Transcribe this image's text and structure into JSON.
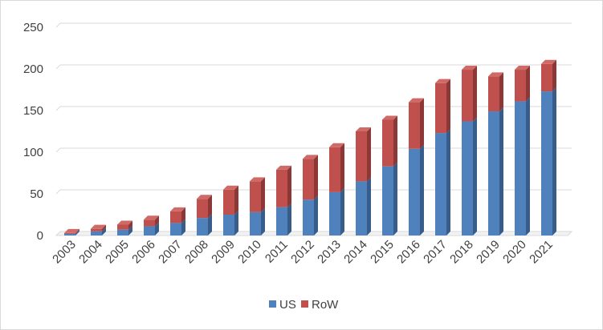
{
  "chart_data": {
    "type": "bar",
    "stacked": true,
    "style": "3d-column",
    "title": "",
    "xlabel": "",
    "ylabel": "",
    "ylim": [
      0,
      250
    ],
    "yticks": [
      0,
      50,
      100,
      150,
      200,
      250
    ],
    "grid": true,
    "legend_position": "bottom",
    "categories": [
      "2003",
      "2004",
      "2005",
      "2006",
      "2007",
      "2008",
      "2009",
      "2010",
      "2011",
      "2012",
      "2013",
      "2014",
      "2015",
      "2016",
      "2017",
      "2018",
      "2019",
      "2020",
      "2021"
    ],
    "series": [
      {
        "name": "US",
        "color": "#4f81bd",
        "side_color": "#385d8a",
        "top_color": "#6a96cc",
        "values": [
          2,
          5,
          7,
          11,
          15,
          21,
          25,
          28,
          34,
          43,
          52,
          65,
          83,
          104,
          123,
          137,
          149,
          161,
          173
        ]
      },
      {
        "name": "RoW",
        "color": "#c0504d",
        "side_color": "#8c3836",
        "top_color": "#d06a67",
        "values": [
          1,
          3,
          6,
          8,
          14,
          23,
          30,
          37,
          45,
          49,
          54,
          60,
          56,
          56,
          60,
          62,
          42,
          38,
          33
        ]
      }
    ]
  }
}
